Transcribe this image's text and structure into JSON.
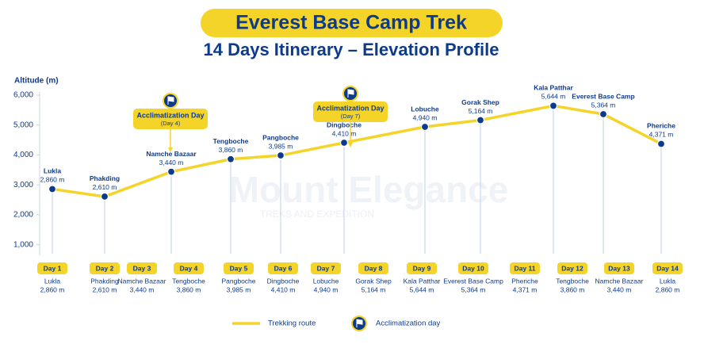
{
  "chart_data": {
    "type": "line",
    "title": "Everest Base Camp Trek",
    "subtitle": "14 Days Itinerary – Elevation Profile",
    "y_label": "Altitude (m)",
    "categories": [
      "Lukla",
      "Phakding",
      "Namche Bazaar",
      "Tengboche",
      "Pangboche",
      "Dingboche",
      "Lobuche",
      "Gorak Shep",
      "Kala Patthar",
      "Everest Base Camp",
      "Pheriche"
    ],
    "series": [
      {
        "name": "Trekking route",
        "color": "#f5d42a",
        "values": [
          2860,
          2610,
          3440,
          3860,
          3985,
          4410,
          4940,
          5164,
          5644,
          5364,
          4371
        ],
        "value_labels": [
          "2,860 m",
          "2,610 m",
          "3,440 m",
          "3,860 m",
          "3,985 m",
          "4,410 m",
          "4,940 m",
          "5,164 m",
          "5,644 m",
          "5,364 m",
          "4,371 m"
        ]
      }
    ],
    "ylim": [
      700,
      6000
    ],
    "yticks": [
      {
        "value": 1000,
        "label": "1,000"
      },
      {
        "value": 2000,
        "label": "2,000"
      },
      {
        "value": 3000,
        "label": "3,000"
      },
      {
        "value": 4000,
        "label": "4,000"
      },
      {
        "value": 5000,
        "label": "5,000"
      },
      {
        "value": 6000,
        "label": "6,000"
      }
    ],
    "acclimatization": {
      "legend": "Acclimatization day",
      "annotations": [
        {
          "label": "Acclimatization Day",
          "note": "(Day 4)"
        },
        {
          "label": "Acclimatization Day",
          "note": "(Day 7)"
        }
      ]
    },
    "watermark": {
      "title": "Mount Elegance",
      "subtitle": "TREKS AND EXPEDITION"
    }
  },
  "itinerary": [
    {
      "day": "Day 1",
      "place": "Lukla",
      "elevation": "2,860 m"
    },
    {
      "day": "Day 2",
      "place": "Phakding",
      "elevation": "2,610 m"
    },
    {
      "day": "Day 3",
      "place": "Namche Bazaar",
      "elevation": "3,440 m"
    },
    {
      "day": "Day 4",
      "place": "Tengboche",
      "elevation": "3,860 m"
    },
    {
      "day": "Day 5",
      "place": "Pangboche",
      "elevation": "3,985 m"
    },
    {
      "day": "Day 6",
      "place": "Dingboche",
      "elevation": "4,410 m"
    },
    {
      "day": "Day 7",
      "place": "Lobuche",
      "elevation": "4,940 m"
    },
    {
      "day": "Day 8",
      "place": "Gorak Shep",
      "elevation": "5,164 m"
    },
    {
      "day": "Day 9",
      "place": "Kala Patthar",
      "elevation": "5,644 m"
    },
    {
      "day": "Day 10",
      "place": "Everest Base Camp",
      "elevation": "5,364 m"
    },
    {
      "day": "Day 11",
      "place": "Pheriche",
      "elevation": "4,371 m"
    },
    {
      "day": "Day 12",
      "place": "Tengboche",
      "elevation": "3,860 m"
    },
    {
      "day": "Day 13",
      "place": "Namche Bazaar",
      "elevation": "3,440 m"
    },
    {
      "day": "Day 14",
      "place": "Lukla",
      "elevation": "2,860 m"
    }
  ]
}
